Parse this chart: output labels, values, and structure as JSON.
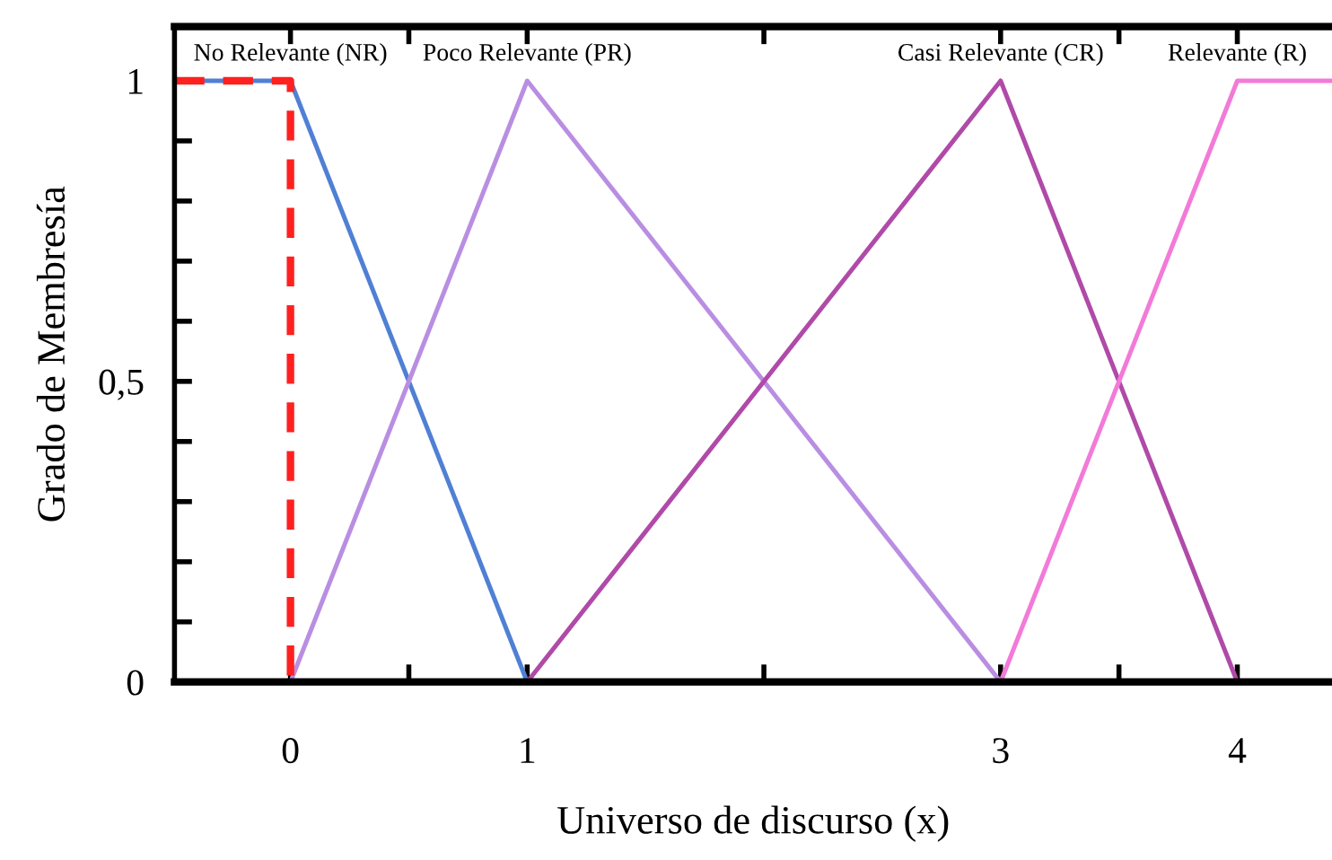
{
  "chart_data": {
    "type": "line",
    "xlabel": "Universo de discurso (x)",
    "ylabel": "Grado de Membresía",
    "xlim": [
      -0.49,
      4.4
    ],
    "ylim": [
      0,
      1.09
    ],
    "xticks": [
      0,
      {
        "value": 0.5,
        "label": null
      },
      1,
      {
        "value": 2,
        "label": null
      },
      3,
      {
        "value": 3.5,
        "label": null
      },
      4
    ],
    "yticks": [
      0,
      {
        "value": 0.1,
        "label": null
      },
      {
        "value": 0.2,
        "label": null
      },
      {
        "value": 0.3,
        "label": null
      },
      {
        "value": 0.4,
        "label": null
      },
      {
        "value": 0.5,
        "label": "0,5"
      },
      {
        "value": 0.6,
        "label": null
      },
      {
        "value": 0.7,
        "label": null
      },
      {
        "value": 0.8,
        "label": null
      },
      {
        "value": 0.9,
        "label": null
      },
      1
    ],
    "grid": false,
    "legend": false,
    "marker": "none",
    "series": [
      {
        "name": "No Relevante (NR)",
        "color": "#5080d4",
        "x": [
          -0.49,
          0,
          1
        ],
        "values": [
          1,
          1,
          0
        ]
      },
      {
        "name": "Poco Relevante (PR)",
        "color": "#b98ee2",
        "x": [
          0,
          1,
          3
        ],
        "values": [
          0,
          1,
          0
        ]
      },
      {
        "name": "Casi Relevante (CR)",
        "color": "#b04aa8",
        "x": [
          1,
          3,
          4
        ],
        "values": [
          0,
          1,
          0
        ]
      },
      {
        "name": "Relevante (R)",
        "color": "#f27ad8",
        "x": [
          3,
          4,
          4.4
        ],
        "values": [
          0,
          1,
          1
        ]
      },
      {
        "color": "#ff2020",
        "line_style": "dashed",
        "x": [
          -0.49,
          0,
          0
        ],
        "values": [
          1,
          1,
          0
        ]
      }
    ]
  }
}
